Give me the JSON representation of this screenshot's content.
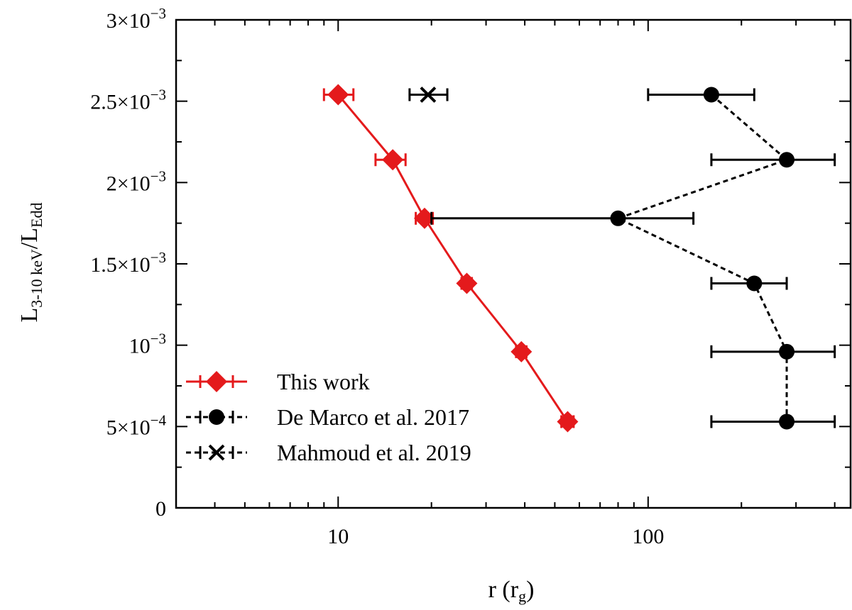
{
  "chart_data": {
    "type": "scatter",
    "xscale": "log",
    "xlim": [
      3,
      450
    ],
    "ylim": [
      0,
      0.003
    ],
    "xlabel": {
      "main": "r (r",
      "sub": "g",
      "close": ")"
    },
    "ylabel": {
      "main1": "L",
      "sub1": "3-10 keV",
      "slash": "/",
      "main2": "L",
      "sub2": "Edd"
    },
    "x_ticks": [
      {
        "value": 10,
        "label": "10"
      },
      {
        "value": 100,
        "label": "100"
      }
    ],
    "y_ticks": [
      {
        "value": 0,
        "mant": "0",
        "exp": ""
      },
      {
        "value": 0.0005,
        "mant": "5×10",
        "exp": "−4"
      },
      {
        "value": 0.001,
        "mant": "10",
        "exp": "−3"
      },
      {
        "value": 0.0015,
        "mant": "1.5×10",
        "exp": "−3"
      },
      {
        "value": 0.002,
        "mant": "2×10",
        "exp": "−3"
      },
      {
        "value": 0.0025,
        "mant": "2.5×10",
        "exp": "−3"
      },
      {
        "value": 0.003,
        "mant": "3×10",
        "exp": "−3"
      }
    ],
    "series": [
      {
        "name": "This work",
        "color": "#e41a1c",
        "marker": "diamond",
        "line": "solid",
        "points": [
          {
            "x": 10,
            "xlo": 9.0,
            "xhi": 11.2,
            "y": 0.00254
          },
          {
            "x": 15,
            "xlo": 13.2,
            "xhi": 16.5,
            "y": 0.00214
          },
          {
            "x": 19,
            "xlo": 17.8,
            "xhi": 20.2,
            "y": 0.00178
          },
          {
            "x": 26,
            "xlo": 25,
            "xhi": 27,
            "y": 0.00138
          },
          {
            "x": 39,
            "xlo": 37.5,
            "xhi": 40.5,
            "y": 0.00096
          },
          {
            "x": 55,
            "xlo": 52.5,
            "xhi": 57.5,
            "y": 0.00053
          }
        ]
      },
      {
        "name": "De Marco et al. 2017",
        "color": "#000000",
        "marker": "circle",
        "line": "dashed",
        "points": [
          {
            "x": 160,
            "xlo": 100,
            "xhi": 220,
            "y": 0.00254
          },
          {
            "x": 280,
            "xlo": 160,
            "xhi": 400,
            "y": 0.00214
          },
          {
            "x": 80,
            "xlo": 20,
            "xhi": 140,
            "y": 0.00178
          },
          {
            "x": 220,
            "xlo": 160,
            "xhi": 280,
            "y": 0.00138
          },
          {
            "x": 280,
            "xlo": 160,
            "xhi": 400,
            "y": 0.00096
          },
          {
            "x": 280,
            "xlo": 160,
            "xhi": 400,
            "y": 0.00053
          }
        ]
      },
      {
        "name": "Mahmoud et al. 2019",
        "color": "#000000",
        "marker": "x",
        "line": "dashed",
        "points": [
          {
            "x": 19.5,
            "xlo": 17,
            "xhi": 22.5,
            "y": 0.00254
          }
        ]
      }
    ],
    "legend": {
      "placement": "lower-left"
    }
  }
}
